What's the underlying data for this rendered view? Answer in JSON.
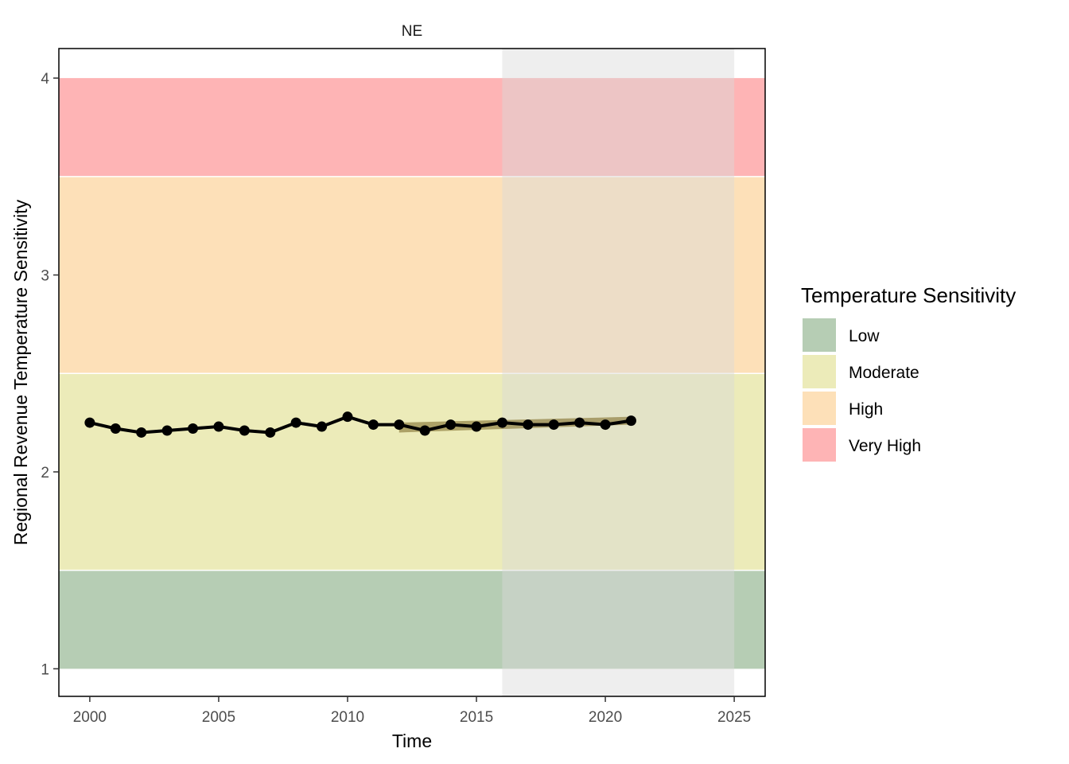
{
  "chart_data": {
    "type": "line",
    "facet": "NE",
    "xlabel": "Time",
    "ylabel": "Regional Revenue Temperature Sensitivity",
    "xlim": [
      1998.8,
      2026.2
    ],
    "ylim": [
      0.86,
      4.15
    ],
    "x_ticks": [
      2000,
      2005,
      2010,
      2015,
      2020,
      2025
    ],
    "y_ticks": [
      1,
      2,
      3,
      4
    ],
    "grid": false,
    "legend_position": "right",
    "legend": {
      "title": "Temperature Sensitivity",
      "items": [
        {
          "label": "Low",
          "color": "#b6cdb4"
        },
        {
          "label": "Moderate",
          "color": "#ecebb9"
        },
        {
          "label": "High",
          "color": "#fde0b8"
        },
        {
          "label": "Very High",
          "color": "#feb4b5"
        }
      ]
    },
    "bands": [
      {
        "category": "Low",
        "ymin": 1.0,
        "ymax": 1.5,
        "color": "#b6cdb4"
      },
      {
        "category": "Moderate",
        "ymin": 1.5,
        "ymax": 2.5,
        "color": "#ecebb9"
      },
      {
        "category": "High",
        "ymin": 2.5,
        "ymax": 3.5,
        "color": "#fde0b8"
      },
      {
        "category": "Very High",
        "ymin": 3.5,
        "ymax": 4.0,
        "color": "#feb4b5"
      }
    ],
    "highlight_region": {
      "xmin": 2016,
      "xmax": 2025,
      "color": "#d9d9d9"
    },
    "series": [
      {
        "x": [
          2000,
          2001,
          2002,
          2003,
          2004,
          2005,
          2006,
          2007,
          2008,
          2009,
          2010,
          2011,
          2012,
          2013,
          2014,
          2015,
          2016,
          2017,
          2018,
          2019,
          2020,
          2021
        ],
        "values": [
          2.25,
          2.22,
          2.2,
          2.21,
          2.22,
          2.23,
          2.21,
          2.2,
          2.25,
          2.23,
          2.28,
          2.24,
          2.24,
          2.21,
          2.24,
          2.23,
          2.25,
          2.24,
          2.24,
          2.25,
          2.24,
          2.26
        ],
        "color": "#000000"
      }
    ],
    "trend_ribbon": {
      "x": [
        2012,
        2021
      ],
      "lower": [
        2.2,
        2.24
      ],
      "upper": [
        2.25,
        2.28
      ],
      "color": "#8b7a3a"
    }
  }
}
